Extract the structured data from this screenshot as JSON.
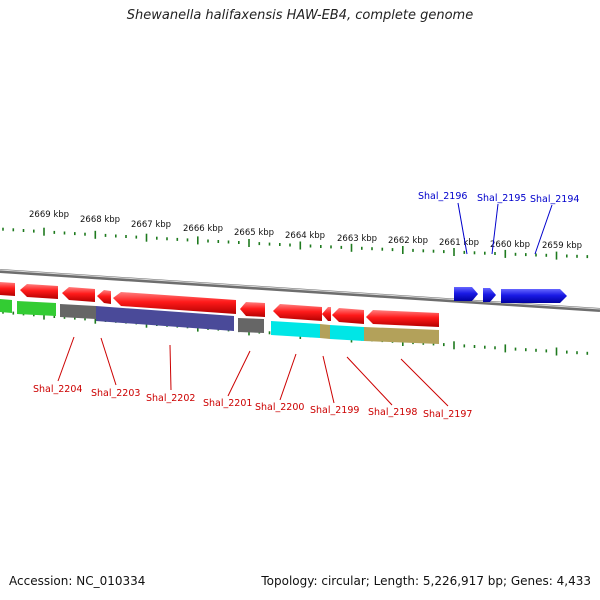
{
  "title": "Shewanella halifaxensis HAW-EB4, complete genome",
  "footer": {
    "accession": "Accession: NC_010334",
    "topology": "Topology: circular; Length: 5,226,917 bp; Genes: 4,433"
  },
  "colors": {
    "forward": "#1a1ad9",
    "reverse": "#e81414",
    "tick": "#1e7a1e",
    "backbone": "#888888",
    "top_label": "#0000cc",
    "bottom_label": "#cc0000"
  },
  "scale": {
    "labels": [
      "2669 kbp",
      "2668 kbp",
      "2667 kbp",
      "2666 kbp",
      "2665 kbp",
      "2664 kbp",
      "2663 kbp",
      "2662 kbp",
      "2661 kbp",
      "2660 kbp",
      "2659 kbp"
    ]
  },
  "genes_top": [
    "Shal_2196",
    "Shal_2195",
    "Shal_2194"
  ],
  "genes_bottom": [
    "Shal_2204",
    "Shal_2203",
    "Shal_2202",
    "Shal_2201",
    "Shal_2200",
    "Shal_2199",
    "Shal_2198",
    "Shal_2197"
  ],
  "cog_colors": [
    "#33cc33",
    "#666666",
    "#4a4a99",
    "#00e6e6",
    "#b3a15a",
    "#808080"
  ]
}
